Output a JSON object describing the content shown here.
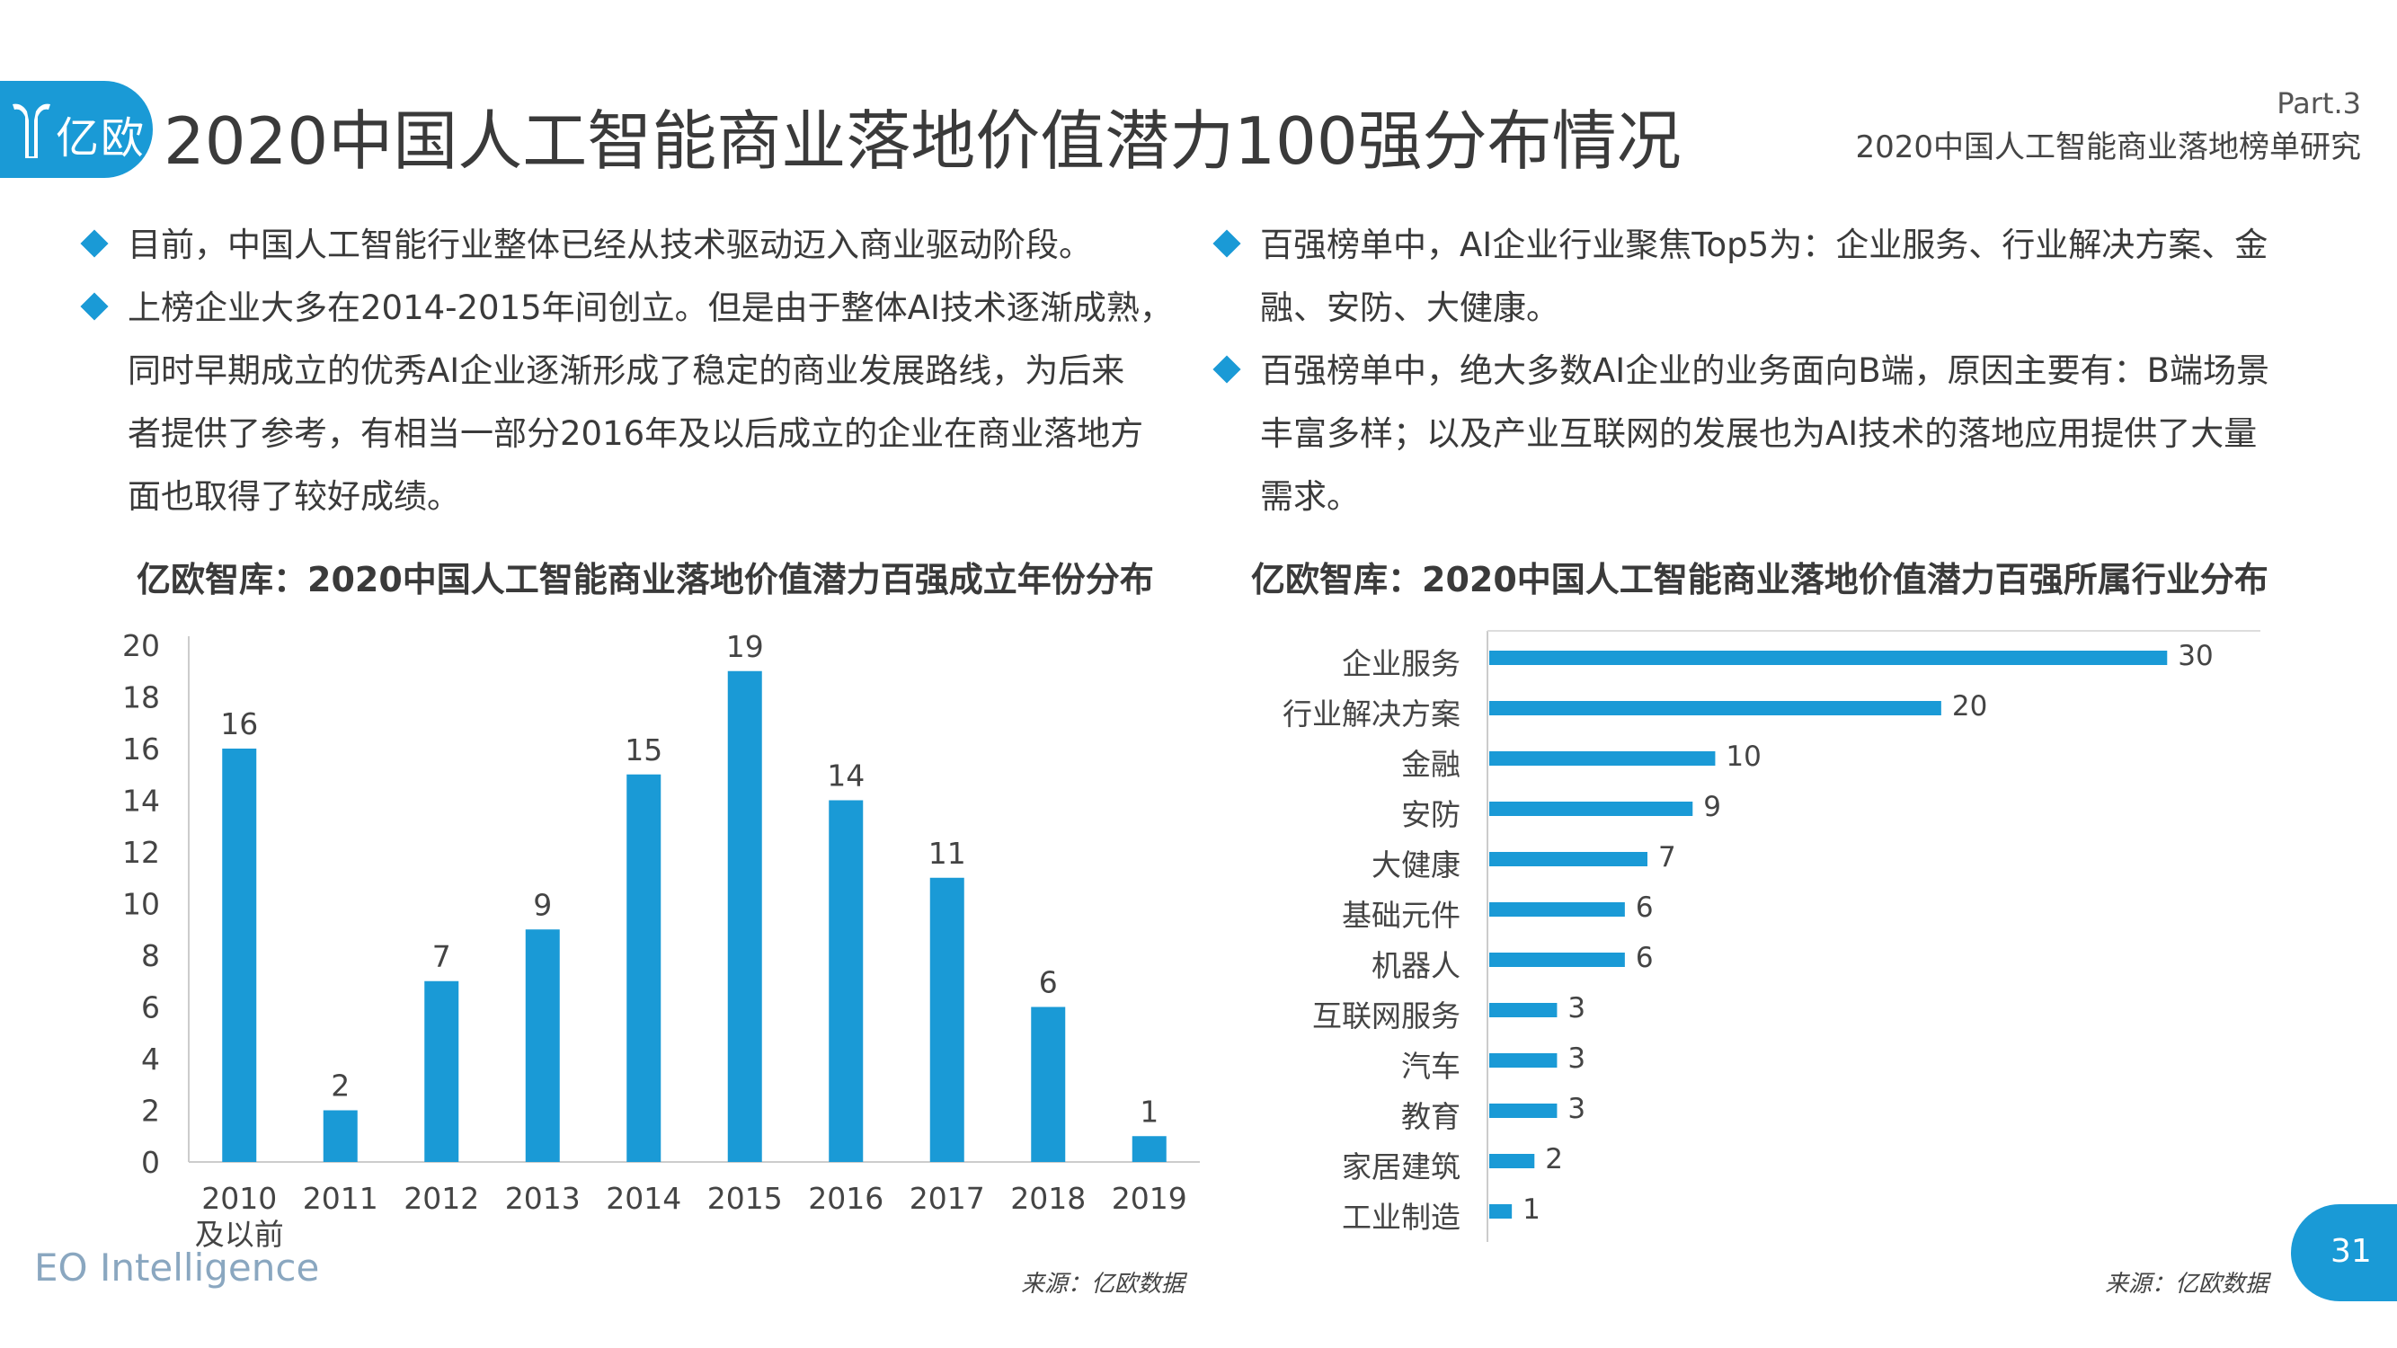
{
  "header": {
    "logo_text": "亿欧",
    "title": "2020中国人工智能商业落地价值潜力100强分布情况",
    "part": "Part.3",
    "subtitle": "2020中国人工智能商业落地榜单研究"
  },
  "bullets_left": [
    {
      "lines": [
        "目前，中国人工智能行业整体已经从技术驱动迈入商业驱动阶段。"
      ]
    },
    {
      "lines": [
        "上榜企业大多在2014-2015年间创立。但是由于整体AI技术逐渐成熟，",
        "同时早期成立的优秀AI企业逐渐形成了稳定的商业发展路线，为后来",
        "者提供了参考，有相当一部分2016年及以后成立的企业在商业落地方",
        "面也取得了较好成绩。"
      ]
    }
  ],
  "bullets_right": [
    {
      "lines": [
        "百强榜单中，AI企业行业聚焦Top5为：企业服务、行业解决方案、金",
        "融、安防、大健康。"
      ]
    },
    {
      "lines": [
        "百强榜单中，绝大多数AI企业的业务面向B端，原因主要有：B端场景",
        "丰富多样；以及产业互联网的发展也为AI技术的落地应用提供了大量",
        "需求。"
      ]
    }
  ],
  "chart_data": [
    {
      "type": "bar",
      "title": "亿欧智库：2020中国人工智能商业落地价值潜力百强成立年份分布",
      "categories": [
        "2010\n及以前",
        "2011",
        "2012",
        "2013",
        "2014",
        "2015",
        "2016",
        "2017",
        "2018",
        "2019"
      ],
      "values": [
        16,
        2,
        7,
        9,
        15,
        19,
        14,
        11,
        6,
        1
      ],
      "ylim": [
        0,
        20
      ],
      "yticks": [
        0,
        2,
        4,
        6,
        8,
        10,
        12,
        14,
        16,
        18,
        20
      ],
      "xlabel": "",
      "ylabel": "",
      "grid": false,
      "color": "#1a9ad6",
      "source": "来源：亿欧数据"
    },
    {
      "type": "bar",
      "orientation": "horizontal",
      "title": "亿欧智库：2020中国人工智能商业落地价值潜力百强所属行业分布",
      "categories": [
        "企业服务",
        "行业解决方案",
        "金融",
        "安防",
        "大健康",
        "基础元件",
        "机器人",
        "互联网服务",
        "汽车",
        "教育",
        "家居建筑",
        "工业制造"
      ],
      "values": [
        30,
        20,
        10,
        9,
        7,
        6,
        6,
        3,
        3,
        3,
        2,
        1
      ],
      "xlim": [
        0,
        35
      ],
      "xlabel": "",
      "ylabel": "",
      "grid": false,
      "color": "#1a9ad6",
      "source": "来源：亿欧数据"
    }
  ],
  "footer": {
    "brand": "EO Intelligence",
    "page": "31"
  }
}
